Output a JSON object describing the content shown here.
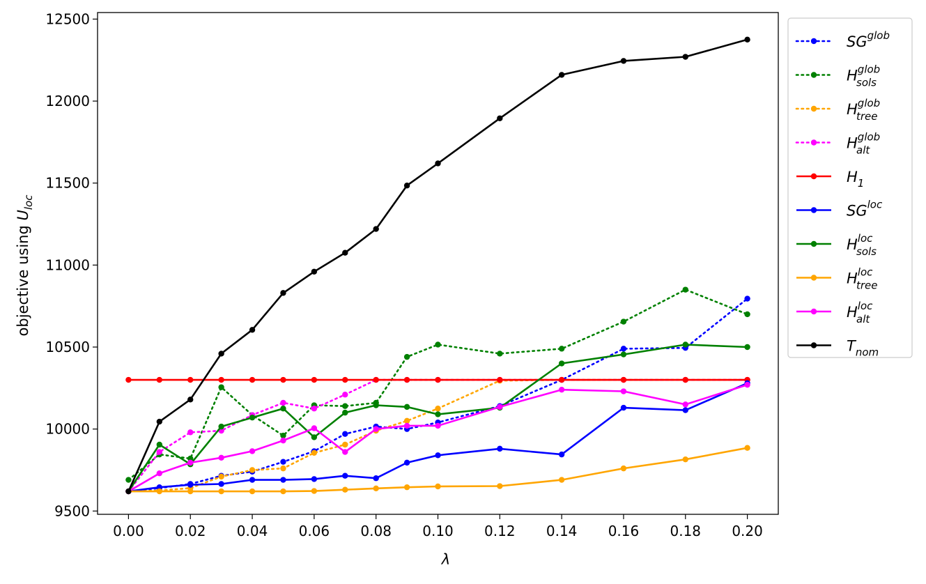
{
  "chart_data": {
    "type": "line",
    "xlabel": "λ",
    "ylabel_main": "objective using ",
    "ylabel_var": "U",
    "ylabel_sub": "loc",
    "x": [
      0.0,
      0.01,
      0.02,
      0.03,
      0.04,
      0.05,
      0.06,
      0.07,
      0.08,
      0.09,
      0.1,
      0.12,
      0.14,
      0.16,
      0.18,
      0.2
    ],
    "xlim": [
      -0.01,
      0.21
    ],
    "ylim": [
      9480,
      12540
    ],
    "xticks": [
      0.0,
      0.02,
      0.04,
      0.06,
      0.08,
      0.1,
      0.12,
      0.14,
      0.16,
      0.18,
      0.2
    ],
    "xtick_labels": [
      "0.00",
      "0.02",
      "0.04",
      "0.06",
      "0.08",
      "0.10",
      "0.12",
      "0.14",
      "0.16",
      "0.18",
      "0.20"
    ],
    "yticks": [
      9500,
      10000,
      10500,
      11000,
      11500,
      12000,
      12500
    ],
    "ytick_labels": [
      "9500",
      "10000",
      "10500",
      "11000",
      "11500",
      "12000",
      "12500"
    ],
    "grid": false,
    "legend_position": "outside-right",
    "series": [
      {
        "name": "SG^glob",
        "label_base": "SG",
        "label_sup": "glob",
        "label_sub": "",
        "color": "#0000ff",
        "style": "dotted",
        "values": [
          9620,
          9640,
          9665,
          9715,
          9740,
          9800,
          9865,
          9970,
          10015,
          10000,
          10040,
          10140,
          10300,
          10490,
          10495,
          10795
        ]
      },
      {
        "name": "H^glob_sols",
        "label_base": "H",
        "label_sup": "glob",
        "label_sub": "sols",
        "color": "#008000",
        "style": "dotted",
        "values": [
          9690,
          9845,
          9820,
          10255,
          10085,
          9960,
          10145,
          10140,
          10160,
          10440,
          10515,
          10460,
          10490,
          10655,
          10850,
          10700
        ]
      },
      {
        "name": "H^glob_tree",
        "label_base": "H",
        "label_sup": "glob",
        "label_sub": "tree",
        "color": "#ffa500",
        "style": "dotted",
        "values": [
          9620,
          9625,
          9640,
          9710,
          9750,
          9760,
          9855,
          9905,
          9990,
          10050,
          10125,
          10295,
          10300,
          10300,
          10300,
          10300
        ]
      },
      {
        "name": "H^glob_alt",
        "label_base": "H",
        "label_sup": "glob",
        "label_sub": "alt",
        "color": "#ff00ff",
        "style": "dotted",
        "values": [
          9620,
          9860,
          9980,
          9990,
          10085,
          10160,
          10125,
          10210,
          10300,
          10300,
          10300,
          10300,
          10300,
          10300,
          10300,
          10300
        ]
      },
      {
        "name": "H_1",
        "label_base": "H",
        "label_sup": "",
        "label_sub": "1",
        "color": "#ff0000",
        "style": "solid",
        "values": [
          10300,
          10300,
          10300,
          10300,
          10300,
          10300,
          10300,
          10300,
          10300,
          10300,
          10300,
          10300,
          10300,
          10300,
          10300,
          10300
        ]
      },
      {
        "name": "SG^loc",
        "label_base": "SG",
        "label_sup": "loc",
        "label_sub": "",
        "color": "#0000ff",
        "style": "solid",
        "values": [
          9620,
          9645,
          9660,
          9665,
          9690,
          9690,
          9695,
          9715,
          9700,
          9795,
          9840,
          9880,
          9845,
          10130,
          10115,
          10280
        ]
      },
      {
        "name": "H^loc_sols",
        "label_base": "H",
        "label_sup": "loc",
        "label_sub": "sols",
        "color": "#008000",
        "style": "solid",
        "values": [
          9620,
          9905,
          9785,
          10015,
          10070,
          10125,
          9950,
          10100,
          10145,
          10135,
          10090,
          10130,
          10400,
          10455,
          10515,
          10500
        ]
      },
      {
        "name": "H^loc_tree",
        "label_base": "H",
        "label_sup": "loc",
        "label_sub": "tree",
        "color": "#ffa500",
        "style": "solid",
        "values": [
          9620,
          9620,
          9620,
          9620,
          9620,
          9620,
          9622,
          9630,
          9638,
          9645,
          9650,
          9652,
          9690,
          9760,
          9815,
          9885
        ]
      },
      {
        "name": "H^loc_alt",
        "label_base": "H",
        "label_sup": "loc",
        "label_sub": "alt",
        "color": "#ff00ff",
        "style": "solid",
        "values": [
          9620,
          9730,
          9795,
          9825,
          9865,
          9930,
          10005,
          9860,
          10000,
          10020,
          10020,
          10135,
          10240,
          10230,
          10150,
          10270
        ]
      },
      {
        "name": "T_nom",
        "label_base": "T",
        "label_sup": "",
        "label_sub": "nom",
        "color": "#000000",
        "style": "solid",
        "values": [
          9620,
          10045,
          10180,
          10460,
          10605,
          10830,
          10960,
          11075,
          11220,
          11485,
          11620,
          11895,
          12160,
          12245,
          12270,
          12375
        ]
      }
    ]
  }
}
